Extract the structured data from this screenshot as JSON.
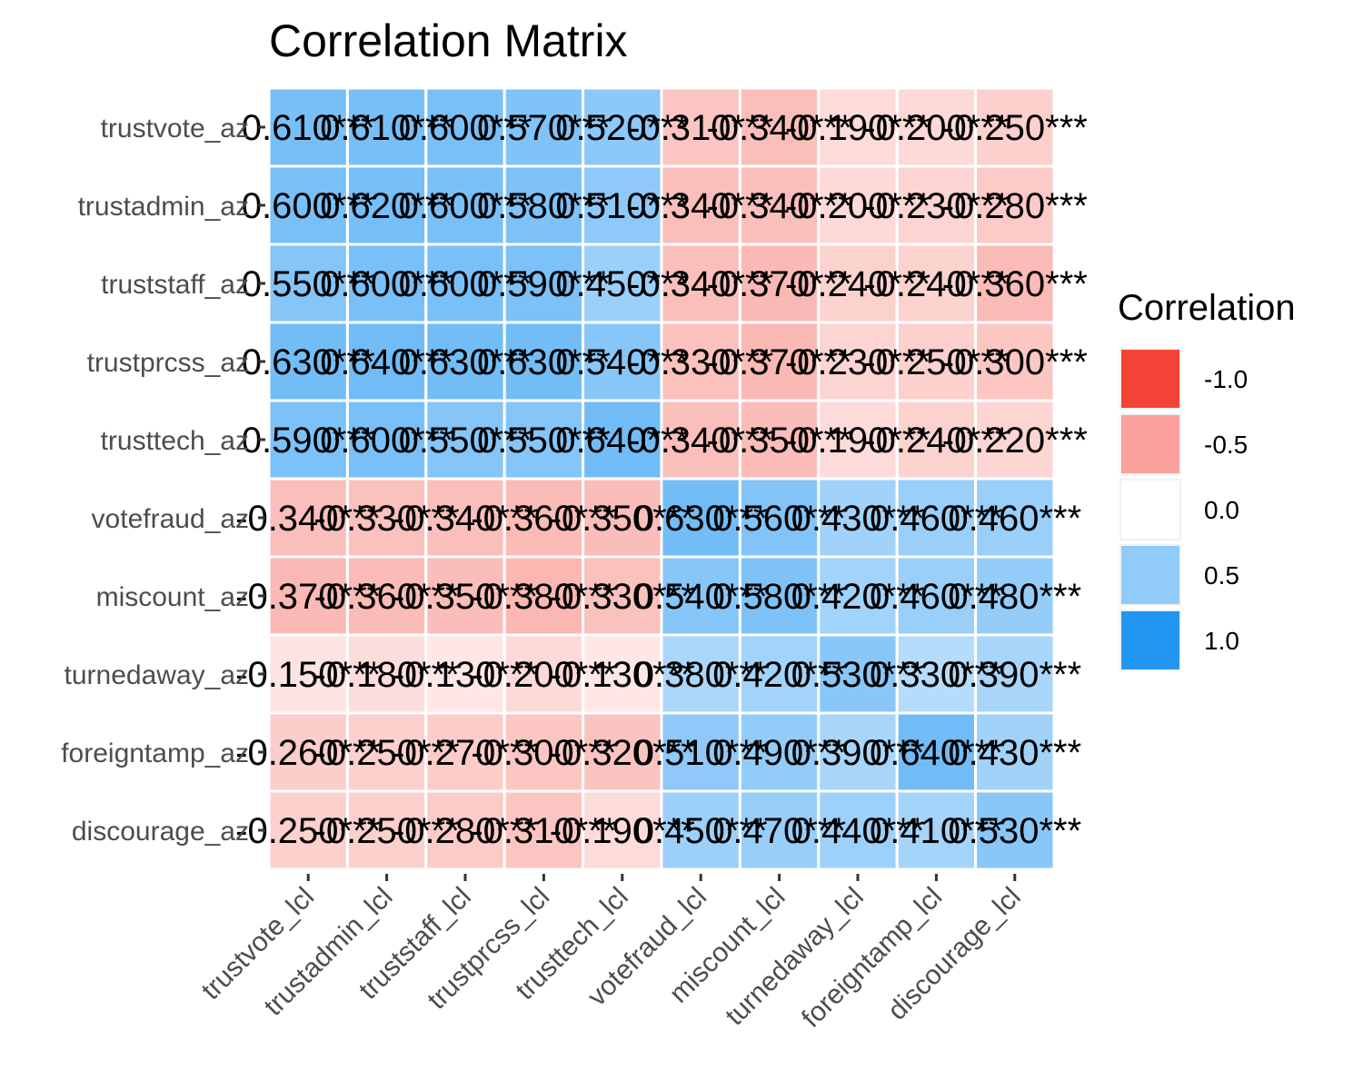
{
  "chart_data": {
    "type": "heatmap",
    "title": "Correlation Matrix",
    "rows": [
      "trustvote_az",
      "trustadmin_az",
      "truststaff_az",
      "trustprcss_az",
      "trusttech_az",
      "votefraud_az",
      "miscount_az",
      "turnedaway_az",
      "foreigntamp_az",
      "discourage_az"
    ],
    "columns": [
      "trustvote_lcl",
      "trustadmin_lcl",
      "truststaff_lcl",
      "trustprcss_lcl",
      "trusttech_lcl",
      "votefraud_lcl",
      "miscount_lcl",
      "turnedaway_lcl",
      "foreigntamp_lcl",
      "discourage_lcl"
    ],
    "values": [
      [
        0.61,
        0.61,
        0.6,
        0.57,
        0.52,
        -0.31,
        -0.34,
        -0.19,
        -0.2,
        -0.25
      ],
      [
        0.6,
        0.62,
        0.6,
        0.58,
        0.51,
        -0.34,
        -0.34,
        -0.2,
        -0.23,
        -0.28
      ],
      [
        0.55,
        0.6,
        0.6,
        0.59,
        0.45,
        -0.34,
        -0.37,
        -0.24,
        -0.24,
        -0.36
      ],
      [
        0.63,
        0.64,
        0.63,
        0.63,
        0.54,
        -0.33,
        -0.37,
        -0.23,
        -0.25,
        -0.3
      ],
      [
        0.59,
        0.6,
        0.55,
        0.55,
        0.64,
        -0.34,
        -0.35,
        -0.19,
        -0.24,
        -0.22
      ],
      [
        -0.34,
        -0.33,
        -0.34,
        -0.36,
        -0.35,
        0.63,
        0.56,
        0.43,
        0.46,
        0.46
      ],
      [
        -0.37,
        -0.36,
        -0.35,
        -0.38,
        -0.33,
        0.54,
        0.58,
        0.42,
        0.46,
        0.48
      ],
      [
        -0.15,
        -0.18,
        -0.13,
        -0.2,
        -0.13,
        0.38,
        0.42,
        0.53,
        0.33,
        0.39
      ],
      [
        -0.26,
        -0.25,
        -0.27,
        -0.3,
        -0.32,
        0.51,
        0.49,
        0.39,
        0.64,
        0.43
      ],
      [
        -0.25,
        -0.25,
        -0.28,
        -0.31,
        -0.19,
        0.45,
        0.47,
        0.44,
        0.41,
        0.53
      ]
    ],
    "cell_labels": [
      [
        "0.610***",
        "0.610***",
        "0.600***",
        "0.570***",
        "0.520***",
        "-0.310***",
        "-0.340***",
        "-0.190***",
        "-0.200***",
        "-0.250***"
      ],
      [
        "0.600***",
        "0.620***",
        "0.600***",
        "0.580***",
        "0.510***",
        "-0.340***",
        "-0.340***",
        "-0.200***",
        "-0.230***",
        "-0.280***"
      ],
      [
        "0.550***",
        "0.600***",
        "0.600***",
        "0.590***",
        "0.450***",
        "-0.340***",
        "-0.370***",
        "-0.240***",
        "-0.240***",
        "-0.360***"
      ],
      [
        "0.630***",
        "0.640***",
        "0.630***",
        "0.630***",
        "0.540***",
        "-0.330***",
        "-0.370***",
        "-0.230***",
        "-0.250***",
        "-0.300***"
      ],
      [
        "0.590***",
        "0.600***",
        "0.550***",
        "0.550***",
        "0.640***",
        "-0.340***",
        "-0.350***",
        "-0.190***",
        "-0.240***",
        "-0.220***"
      ],
      [
        "-0.340***",
        "-0.330***",
        "-0.340***",
        "-0.360***",
        "-0.350***",
        "0.630***",
        "0.560***",
        "0.430***",
        "0.460***",
        "0.460***"
      ],
      [
        "-0.370***",
        "-0.360***",
        "-0.350***",
        "-0.380***",
        "-0.330***",
        "0.540***",
        "0.580***",
        "0.420***",
        "0.460***",
        "0.480***"
      ],
      [
        "-0.150***",
        "-0.180***",
        "-0.130***",
        "-0.200***",
        "-0.130***",
        "0.380***",
        "0.420***",
        "0.530***",
        "0.330***",
        "0.390***"
      ],
      [
        "-0.260***",
        "-0.250***",
        "-0.270***",
        "-0.300***",
        "-0.320***",
        "0.510***",
        "0.490***",
        "0.390***",
        "0.640***",
        "0.430***"
      ],
      [
        "-0.250***",
        "-0.250***",
        "-0.280***",
        "-0.310***",
        "-0.190***",
        "0.450***",
        "0.470***",
        "0.440***",
        "0.410***",
        "0.530***"
      ]
    ],
    "color_scale": {
      "low": "#F44336",
      "mid": "#FFFFFF",
      "high": "#2196F3",
      "limits": [
        -1,
        1
      ]
    },
    "legend": {
      "title": "Correlation",
      "position": "right",
      "entries": [
        {
          "label": "-1.0",
          "value": -1.0
        },
        {
          "label": "-0.5",
          "value": -0.5
        },
        {
          "label": "0.0",
          "value": 0.0
        },
        {
          "label": "0.5",
          "value": 0.5
        },
        {
          "label": "1.0",
          "value": 1.0
        }
      ]
    },
    "grid": false
  }
}
